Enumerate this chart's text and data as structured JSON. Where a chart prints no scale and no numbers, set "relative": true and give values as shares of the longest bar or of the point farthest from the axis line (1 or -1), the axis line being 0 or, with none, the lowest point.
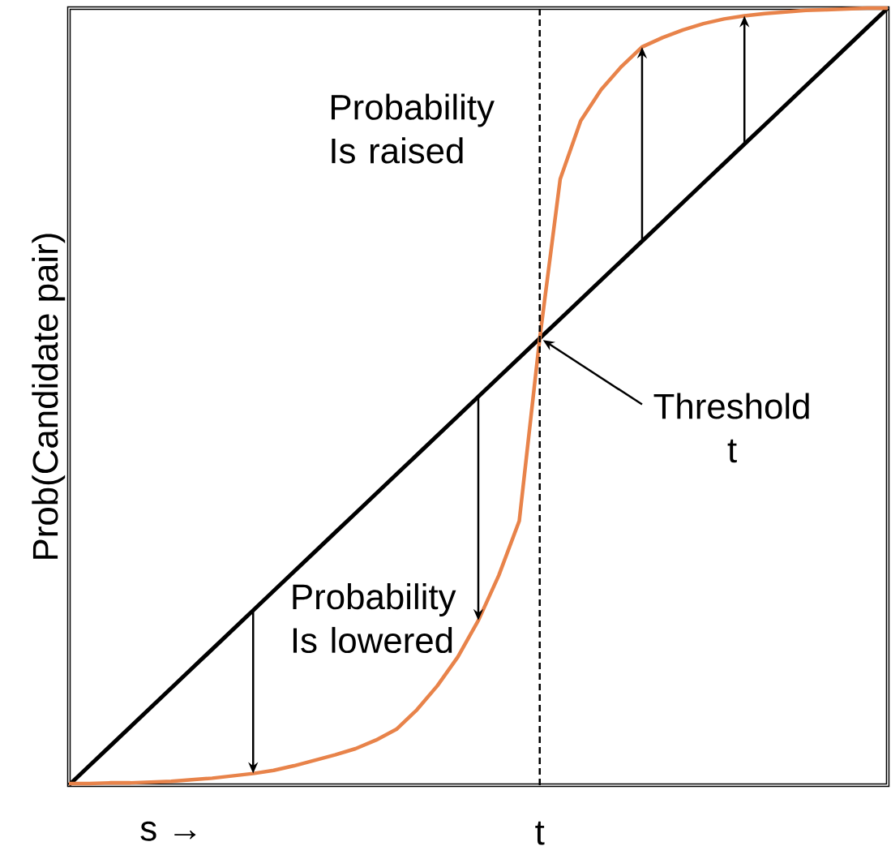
{
  "chart_data": {
    "type": "line",
    "relative": true,
    "ylabel": "Prob(Candidate pair)",
    "categories": [
      null,
      null,
      null,
      null,
      null,
      "s →",
      null,
      null,
      null,
      null,
      null,
      null,
      null,
      null,
      null,
      null,
      null,
      null,
      null,
      null,
      null,
      null,
      null,
      "t",
      null,
      null,
      null,
      null,
      null,
      null,
      null,
      null,
      null,
      null,
      null,
      null,
      null,
      null,
      null,
      null,
      null
    ],
    "series": [
      {
        "color": "#000000",
        "values": [
          0,
          0.025,
          0.05,
          0.075,
          0.1,
          0.125,
          0.15,
          0.175,
          0.2,
          0.225,
          0.25,
          0.275,
          0.3,
          0.325,
          0.35,
          0.375,
          0.4,
          0.425,
          0.45,
          0.475,
          0.5,
          0.525,
          0.55,
          0.575,
          0.6,
          0.625,
          0.65,
          0.675,
          0.7,
          0.725,
          0.75,
          0.775,
          0.8,
          0.825,
          0.85,
          0.875,
          0.9,
          0.925,
          0.95,
          0.975,
          1
        ]
      },
      {
        "color": "#e8834a",
        "values": [
          0.002,
          0.002,
          0.003,
          0.003,
          0.004,
          0.005,
          0.007,
          0.009,
          0.012,
          0.015,
          0.019,
          0.025,
          0.032,
          0.039,
          0.047,
          0.058,
          0.072,
          0.097,
          0.128,
          0.165,
          0.212,
          0.27,
          0.34,
          0.575,
          0.78,
          0.855,
          0.895,
          0.925,
          0.95,
          0.962,
          0.972,
          0.98,
          0.986,
          0.99,
          0.993,
          0.995,
          0.997,
          0.998,
          0.999,
          1,
          1
        ]
      }
    ],
    "ref_lines": [
      {
        "axis": "x",
        "value": "t",
        "color": "#000000",
        "line_style": "dashed"
      }
    ],
    "annotations": [
      "Probability Is raised",
      "Probability Is lowered",
      "Threshold t"
    ]
  }
}
